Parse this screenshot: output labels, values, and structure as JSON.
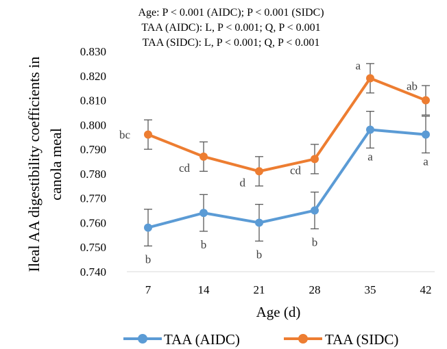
{
  "chart_data": {
    "type": "line",
    "annotations_top": [
      "Age: P < 0.001 (AIDC); P < 0.001 (SIDC)",
      "TAA (AIDC): L, P < 0.001; Q, P < 0.001",
      "TAA (SIDC): L, P < 0.001; Q, P < 0.001"
    ],
    "xlabel": "Age (d)",
    "ylabel_lines": [
      "Ileal AA digestibility coefficients in",
      "canola meal"
    ],
    "categories": [
      "7",
      "14",
      "21",
      "28",
      "35",
      "42"
    ],
    "ylim": [
      0.74,
      0.83
    ],
    "yticks": [
      "0.740",
      "0.750",
      "0.760",
      "0.770",
      "0.780",
      "0.790",
      "0.800",
      "0.810",
      "0.820",
      "0.830"
    ],
    "grid": false,
    "legend_position": "bottom",
    "series": [
      {
        "name": "TAA (AIDC)",
        "color": "#5B9BD5",
        "values": [
          0.758,
          0.764,
          0.76,
          0.765,
          0.798,
          0.796
        ],
        "errors": [
          0.0075,
          0.0075,
          0.0075,
          0.0075,
          0.0075,
          0.0075
        ],
        "letters": [
          "b",
          "b",
          "b",
          "b",
          "a",
          "a"
        ],
        "letter_placement": "below"
      },
      {
        "name": "TAA (SIDC)",
        "color": "#ED7D31",
        "values": [
          0.796,
          0.787,
          0.781,
          0.786,
          0.819,
          0.81
        ],
        "errors": [
          0.006,
          0.006,
          0.006,
          0.006,
          0.006,
          0.006
        ],
        "letters": [
          "bc",
          "cd",
          "d",
          "cd",
          "a",
          "ab"
        ],
        "letter_placement": "left"
      }
    ]
  }
}
